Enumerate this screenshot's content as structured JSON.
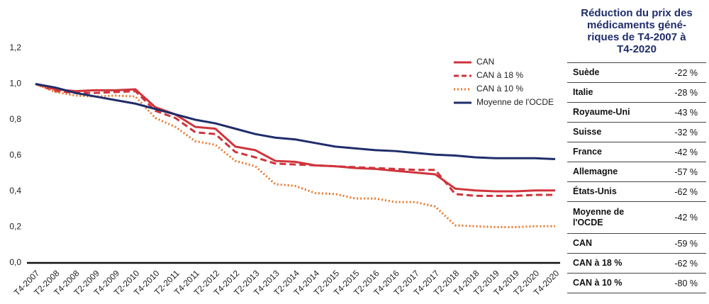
{
  "chart_data": {
    "type": "line",
    "categories": [
      "T4-2007",
      "T2-2008",
      "T4-2008",
      "T2-2009",
      "T4-2009",
      "T2-2010",
      "T4-2010",
      "T2-2011",
      "T4-2011",
      "T2-2012",
      "T4-2012",
      "T2-2013",
      "T4-2013",
      "T2-2014",
      "T4-2014",
      "T2-2015",
      "T4-2015",
      "T2-2016",
      "T4-2016",
      "T2-2017",
      "T4-2017",
      "T2-2018",
      "T4-2018",
      "T2-2019",
      "T4-2019",
      "T2-2020",
      "T4-2020"
    ],
    "series": [
      {
        "name": "CAN",
        "color": "#cf343b",
        "style": "solid",
        "values": [
          1.0,
          0.97,
          0.96,
          0.965,
          0.965,
          0.97,
          0.87,
          0.83,
          0.76,
          0.75,
          0.65,
          0.63,
          0.57,
          0.565,
          0.545,
          0.54,
          0.53,
          0.525,
          0.515,
          0.505,
          0.495,
          0.415,
          0.405,
          0.4,
          0.4,
          0.405,
          0.405
        ]
      },
      {
        "name": "CAN à 18 %",
        "color": "#cf343b",
        "style": "dashed",
        "values": [
          1.0,
          0.96,
          0.95,
          0.95,
          0.955,
          0.96,
          0.85,
          0.81,
          0.73,
          0.72,
          0.62,
          0.59,
          0.555,
          0.55,
          0.545,
          0.54,
          0.535,
          0.53,
          0.525,
          0.52,
          0.52,
          0.385,
          0.375,
          0.375,
          0.375,
          0.38,
          0.38
        ]
      },
      {
        "name": "CAN à 10 %",
        "color": "#e8782a",
        "style": "dotted",
        "values": [
          1.0,
          0.955,
          0.935,
          0.93,
          0.935,
          0.93,
          0.81,
          0.76,
          0.68,
          0.66,
          0.57,
          0.54,
          0.44,
          0.43,
          0.39,
          0.385,
          0.36,
          0.36,
          0.34,
          0.34,
          0.315,
          0.21,
          0.205,
          0.2,
          0.2,
          0.205,
          0.205
        ]
      },
      {
        "name": "Moyenne de l'OCDE",
        "color": "#1f2d6b",
        "style": "solid",
        "values": [
          1.0,
          0.98,
          0.95,
          0.93,
          0.91,
          0.89,
          0.86,
          0.83,
          0.8,
          0.78,
          0.75,
          0.72,
          0.7,
          0.69,
          0.67,
          0.65,
          0.64,
          0.63,
          0.625,
          0.615,
          0.605,
          0.6,
          0.59,
          0.585,
          0.585,
          0.585,
          0.58
        ]
      }
    ],
    "ylim": [
      0,
      1.2
    ],
    "yticks": [
      {
        "value": 0,
        "label": "0,0"
      },
      {
        "value": 0.2,
        "label": "0,2"
      },
      {
        "value": 0.4,
        "label": "0,4"
      },
      {
        "value": 0.6,
        "label": "0,6"
      },
      {
        "value": 0.8,
        "label": "0,8"
      },
      {
        "value": 1.0,
        "label": "1,0"
      },
      {
        "value": 1.2,
        "label": "1,2"
      }
    ],
    "grid": false,
    "legend": "upper right"
  },
  "table": {
    "title": [
      "Réduction du prix des",
      "médicaments géné-",
      "riques de T4-2007 à",
      "T4-2020"
    ],
    "rows": [
      [
        "Suède",
        "-22 %"
      ],
      [
        "Italie",
        "-28 %"
      ],
      [
        "Royaume-Uni",
        "-43 %"
      ],
      [
        "Suisse",
        "-32 %"
      ],
      [
        "France",
        "-42 %"
      ],
      [
        "Allemagne",
        "-57 %"
      ],
      [
        "États-Unis",
        "-62 %"
      ],
      [
        "Moyenne de l'OCDE",
        "-42 %"
      ],
      [
        "CAN",
        "-59 %"
      ],
      [
        "CAN à 18 %",
        "-62 %"
      ],
      [
        "CAN à 10 %",
        "-80 %"
      ]
    ]
  }
}
